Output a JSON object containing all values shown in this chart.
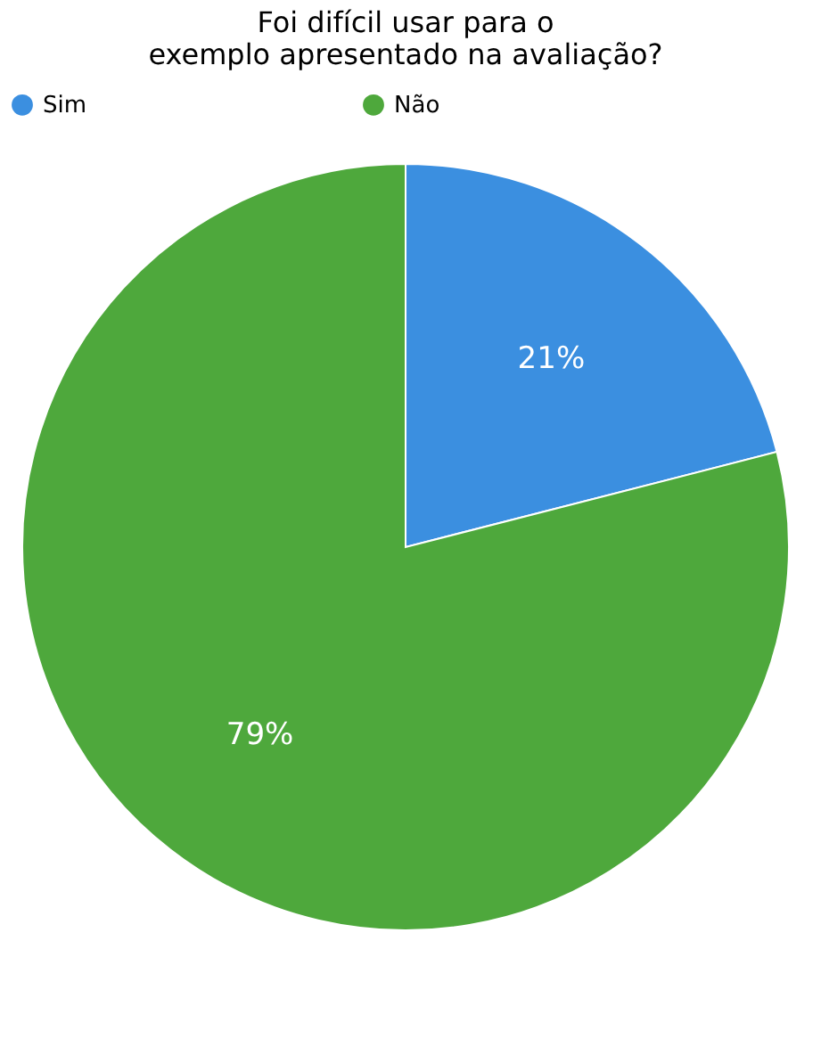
{
  "chart_data": {
    "type": "pie",
    "title": [
      "Foi difícil usar para o",
      "exemplo apresentado na avaliação?"
    ],
    "categories": [
      "Sim",
      "Não"
    ],
    "values": [
      21,
      79
    ],
    "colors": [
      "#3b8fe0",
      "#4ea83c"
    ],
    "value_labels": [
      "21%",
      "79%"
    ],
    "legend": "top"
  }
}
